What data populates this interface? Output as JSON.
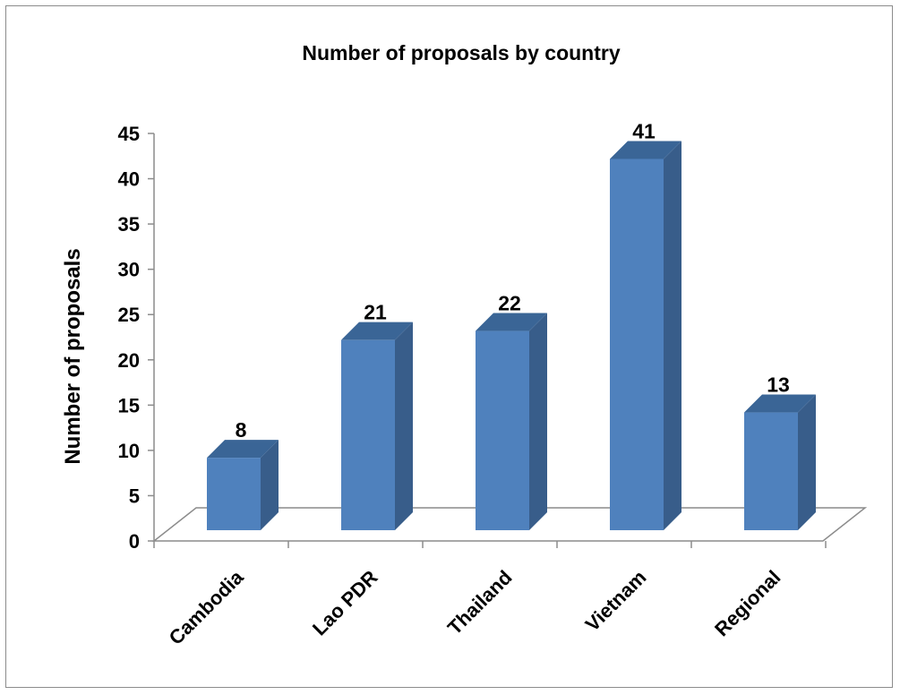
{
  "chart_data": {
    "type": "bar",
    "title": "Number of proposals by country",
    "xlabel": "",
    "ylabel": "Number of proposals",
    "categories": [
      "Cambodia",
      "Lao PDR",
      "Thailand",
      "Vietnam",
      "Regional"
    ],
    "values": [
      8,
      21,
      22,
      41,
      13
    ],
    "ylim": [
      0,
      45
    ],
    "yticks": [
      0,
      5,
      10,
      15,
      20,
      25,
      30,
      35,
      40,
      45
    ],
    "grid": false,
    "legend": "none",
    "three_d": true,
    "colors": {
      "bar_front": "#4f81bd",
      "bar_side": "#385d8a",
      "bar_top": "#3a6596"
    }
  }
}
